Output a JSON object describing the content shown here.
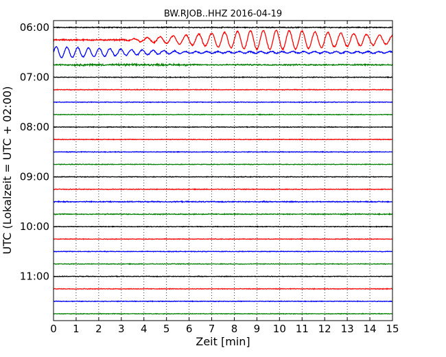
{
  "chart_data": {
    "type": "line",
    "title": "BW.RJOB..HHZ 2016-04-19",
    "xlabel": "Zeit  [min]",
    "ylabel": "UTC (Lokalzeit = UTC + 02:00)",
    "xlim": [
      0,
      15
    ],
    "x_ticks": [
      "0",
      "1",
      "2",
      "3",
      "4",
      "5",
      "6",
      "7",
      "8",
      "9",
      "10",
      "11",
      "12",
      "13",
      "14",
      "15"
    ],
    "y_ticks": [
      "06:00",
      "07:00",
      "08:00",
      "09:00",
      "10:00",
      "11:00"
    ],
    "grid": "vertical-dotted",
    "series_colors": [
      "#000000",
      "#ff0000",
      "#0000ff",
      "#008000"
    ],
    "traces": [
      {
        "start": "06:00",
        "color": "#000000",
        "max_amplitude": 0.15
      },
      {
        "start": "06:15",
        "color": "#ff0000",
        "max_amplitude": 0.75
      },
      {
        "start": "06:30",
        "color": "#0000ff",
        "max_amplitude": 0.45
      },
      {
        "start": "06:45",
        "color": "#008000",
        "max_amplitude": 0.2
      },
      {
        "start": "07:00",
        "color": "#000000",
        "max_amplitude": 0.1
      },
      {
        "start": "07:15",
        "color": "#ff0000",
        "max_amplitude": 0.1
      },
      {
        "start": "07:30",
        "color": "#0000ff",
        "max_amplitude": 0.1
      },
      {
        "start": "07:45",
        "color": "#008000",
        "max_amplitude": 0.1
      },
      {
        "start": "08:00",
        "color": "#000000",
        "max_amplitude": 0.1
      },
      {
        "start": "08:15",
        "color": "#ff0000",
        "max_amplitude": 0.1
      },
      {
        "start": "08:30",
        "color": "#0000ff",
        "max_amplitude": 0.1
      },
      {
        "start": "08:45",
        "color": "#008000",
        "max_amplitude": 0.1
      },
      {
        "start": "09:00",
        "color": "#000000",
        "max_amplitude": 0.1
      },
      {
        "start": "09:15",
        "color": "#ff0000",
        "max_amplitude": 0.1
      },
      {
        "start": "09:30",
        "color": "#0000ff",
        "max_amplitude": 0.15
      },
      {
        "start": "09:45",
        "color": "#008000",
        "max_amplitude": 0.15
      },
      {
        "start": "10:00",
        "color": "#000000",
        "max_amplitude": 0.1
      },
      {
        "start": "10:15",
        "color": "#ff0000",
        "max_amplitude": 0.1
      },
      {
        "start": "10:30",
        "color": "#0000ff",
        "max_amplitude": 0.1
      },
      {
        "start": "10:45",
        "color": "#008000",
        "max_amplitude": 0.1
      },
      {
        "start": "11:00",
        "color": "#000000",
        "max_amplitude": 0.1
      },
      {
        "start": "11:15",
        "color": "#ff0000",
        "max_amplitude": 0.1
      },
      {
        "start": "11:30",
        "color": "#0000ff",
        "max_amplitude": 0.1
      },
      {
        "start": "11:45",
        "color": "#008000",
        "max_amplitude": 0.1
      }
    ]
  }
}
